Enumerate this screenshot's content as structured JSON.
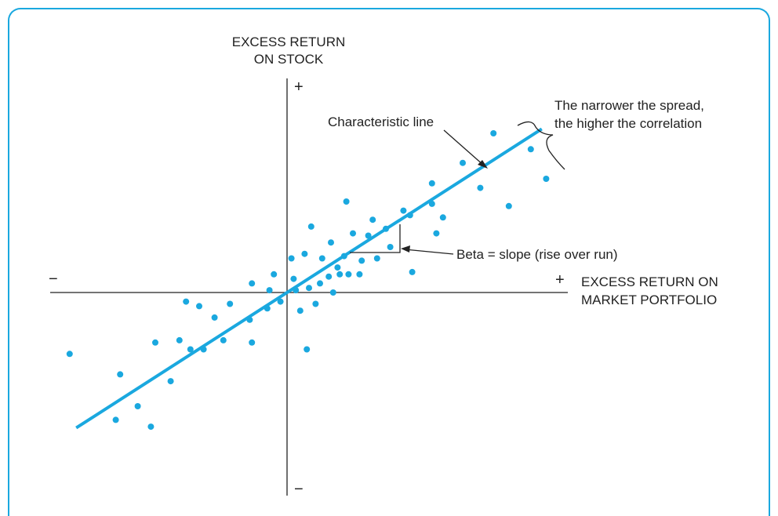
{
  "colors": {
    "accent": "#1aa8df",
    "ink": "#222222",
    "background": "#ffffff"
  },
  "labels": {
    "y_axis_line1": "EXCESS RETURN",
    "y_axis_line2": "ON STOCK",
    "x_axis_line1": "EXCESS RETURN ON",
    "x_axis_line2": "MARKET PORTFOLIO",
    "plus_top": "+",
    "minus_bottom": "−",
    "plus_right": "+",
    "minus_left": "−",
    "characteristic_line": "Characteristic line",
    "spread_line1": "The narrower the spread,",
    "spread_line2": "the higher the correlation",
    "beta": "Beta = slope (rise over run)"
  },
  "chart_data": {
    "type": "scatter",
    "title": "",
    "xlabel": "EXCESS RETURN ON MARKET PORTFOLIO",
    "ylabel": "EXCESS RETURN ON STOCK",
    "xlim": [
      -10,
      12
    ],
    "ylim": [
      -9.5,
      8.5
    ],
    "grid": false,
    "ticks": "none (axes marked only with + and − signs)",
    "points": [
      [
        -9.9,
        -2.7
      ],
      [
        -7.8,
        -5.6
      ],
      [
        -7.6,
        -3.6
      ],
      [
        -6.8,
        -5.0
      ],
      [
        -6.2,
        -5.9
      ],
      [
        -6.0,
        -2.2
      ],
      [
        -5.3,
        -3.9
      ],
      [
        -4.9,
        -2.1
      ],
      [
        -4.6,
        -0.4
      ],
      [
        -4.4,
        -2.5
      ],
      [
        -4.0,
        -0.6
      ],
      [
        -3.8,
        -2.5
      ],
      [
        -3.3,
        -1.1
      ],
      [
        -2.9,
        -2.1
      ],
      [
        -2.6,
        -0.5
      ],
      [
        -1.7,
        -1.2
      ],
      [
        -1.6,
        -2.2
      ],
      [
        -1.6,
        0.4
      ],
      [
        -0.9,
        -0.7
      ],
      [
        -0.8,
        0.1
      ],
      [
        -0.6,
        0.8
      ],
      [
        -0.3,
        -0.4
      ],
      [
        0.2,
        1.5
      ],
      [
        0.3,
        0.6
      ],
      [
        0.4,
        0.1
      ],
      [
        0.6,
        -0.8
      ],
      [
        0.8,
        1.7
      ],
      [
        0.9,
        -2.5
      ],
      [
        1.0,
        0.2
      ],
      [
        1.1,
        2.9
      ],
      [
        1.3,
        -0.5
      ],
      [
        1.5,
        0.4
      ],
      [
        1.6,
        1.5
      ],
      [
        1.9,
        0.7
      ],
      [
        2.0,
        2.2
      ],
      [
        2.1,
        0.0
      ],
      [
        2.3,
        1.1
      ],
      [
        2.4,
        0.8
      ],
      [
        2.6,
        1.6
      ],
      [
        2.7,
        4.0
      ],
      [
        2.8,
        0.8
      ],
      [
        3.0,
        2.6
      ],
      [
        3.3,
        0.8
      ],
      [
        3.4,
        1.4
      ],
      [
        3.7,
        2.5
      ],
      [
        3.9,
        3.2
      ],
      [
        4.1,
        1.5
      ],
      [
        4.5,
        2.8
      ],
      [
        4.7,
        2.0
      ],
      [
        5.3,
        3.6
      ],
      [
        5.7,
        0.9
      ],
      [
        5.6,
        3.4
      ],
      [
        6.6,
        3.9
      ],
      [
        6.6,
        4.8
      ],
      [
        6.8,
        2.6
      ],
      [
        7.1,
        3.3
      ],
      [
        8.0,
        5.7
      ],
      [
        8.8,
        4.6
      ],
      [
        9.4,
        7.0
      ],
      [
        10.1,
        3.8
      ],
      [
        11.1,
        6.3
      ],
      [
        11.8,
        5.0
      ]
    ],
    "regression_line": {
      "x_range": [
        -9.6,
        11.6
      ],
      "slope": 0.62,
      "intercept": 0
    },
    "annotations": [
      "Characteristic line",
      "The narrower the spread, the higher the correlation",
      "Beta = slope (rise over run)"
    ]
  }
}
